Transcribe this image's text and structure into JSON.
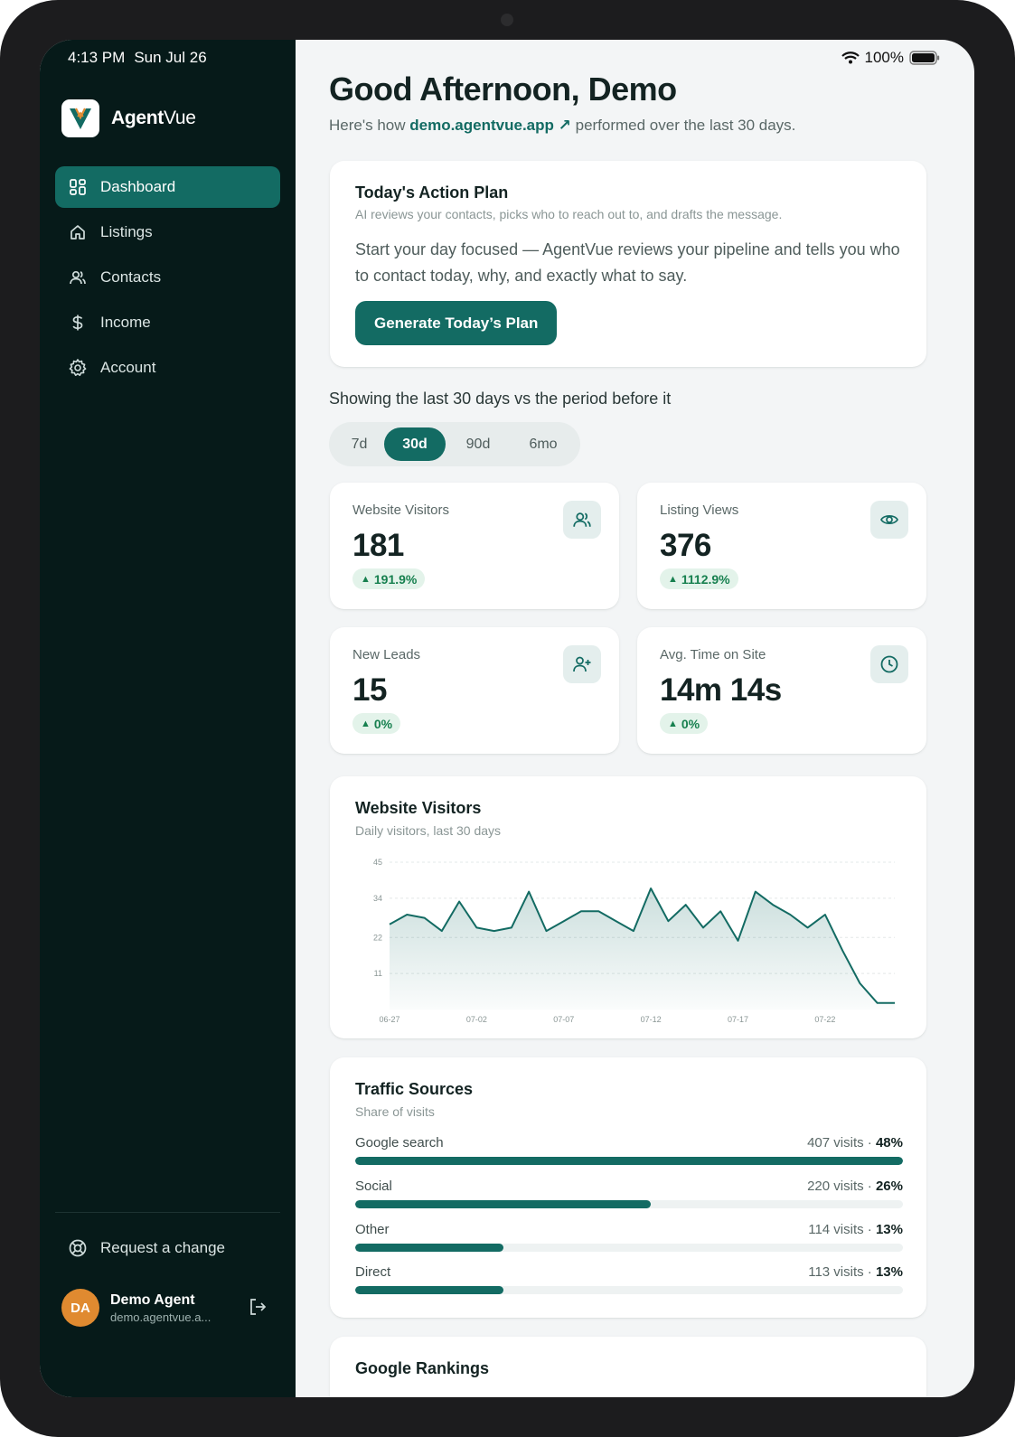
{
  "status": {
    "time": "4:13 PM",
    "date": "Sun Jul 26",
    "battery": "100%"
  },
  "brand": {
    "name_bold": "Agent",
    "name_light": "Vue"
  },
  "sidebar": {
    "items": [
      {
        "label": "Dashboard",
        "icon": "dashboard-icon",
        "active": true
      },
      {
        "label": "Listings",
        "icon": "home-icon"
      },
      {
        "label": "Contacts",
        "icon": "users-icon"
      },
      {
        "label": "Income",
        "icon": "dollar-icon"
      },
      {
        "label": "Account",
        "icon": "gear-icon"
      }
    ],
    "request_label": "Request a change",
    "user": {
      "initials": "DA",
      "name": "Demo Agent",
      "email": "demo.agentvue.a..."
    }
  },
  "header": {
    "greeting": "Good Afternoon, Demo",
    "sub_prefix": "Here's how",
    "site": "demo.agentvue.app",
    "site_arrow": "↗",
    "sub_suffix": "performed over the last 30 days."
  },
  "plan": {
    "title": "Today's Action Plan",
    "subtitle": "AI reviews your contacts, picks who to reach out to, and drafts the message.",
    "body": "Start your day focused — AgentVue reviews your pipeline and tells you who to contact today, why, and exactly what to say.",
    "button": "Generate Today’s Plan"
  },
  "range": {
    "caption": "Showing the last 30 days vs the period before it",
    "tabs": [
      "7d",
      "30d",
      "90d",
      "6mo"
    ],
    "active": "30d"
  },
  "stats": [
    {
      "label": "Website Visitors",
      "value": "181",
      "delta": "191.9%",
      "icon": "users-icon"
    },
    {
      "label": "Listing Views",
      "value": "376",
      "delta": "1112.9%",
      "icon": "eye-icon"
    },
    {
      "label": "New Leads",
      "value": "15",
      "delta": "0%",
      "icon": "user-plus-icon"
    },
    {
      "label": "Avg. Time on Site",
      "value": "14m 14s",
      "delta": "0%",
      "icon": "clock-icon"
    }
  ],
  "visitors_chart": {
    "title": "Website Visitors",
    "subtitle": "Daily visitors, last 30 days"
  },
  "chart_data": {
    "type": "area",
    "title": "Website Visitors",
    "subtitle": "Daily visitors, last 30 days",
    "xlabel": "",
    "ylabel": "",
    "ylim": [
      0,
      45
    ],
    "yticks": [
      11,
      22,
      34,
      45
    ],
    "xtick_labels": [
      "06-27",
      "07-02",
      "07-07",
      "07-12",
      "07-17",
      "07-22"
    ],
    "x": [
      "06-27",
      "06-28",
      "06-29",
      "06-30",
      "07-01",
      "07-02",
      "07-03",
      "07-04",
      "07-05",
      "07-06",
      "07-07",
      "07-08",
      "07-09",
      "07-10",
      "07-11",
      "07-12",
      "07-13",
      "07-14",
      "07-15",
      "07-16",
      "07-17",
      "07-18",
      "07-19",
      "07-20",
      "07-21",
      "07-22",
      "07-23",
      "07-24",
      "07-25",
      "07-26"
    ],
    "values": [
      26,
      29,
      28,
      24,
      33,
      25,
      24,
      25,
      36,
      24,
      27,
      30,
      30,
      27,
      24,
      37,
      27,
      32,
      25,
      30,
      21,
      36,
      32,
      29,
      25,
      29,
      18,
      8,
      2,
      2
    ],
    "grid": true,
    "color": "#136b63"
  },
  "traffic": {
    "title": "Traffic Sources",
    "subtitle": "Share of visits",
    "sources": [
      {
        "label": "Google search",
        "visits": "407 visits ·",
        "pct": "48%",
        "share": 1.0
      },
      {
        "label": "Social",
        "visits": "220 visits ·",
        "pct": "26%",
        "share": 0.54
      },
      {
        "label": "Other",
        "visits": "114 visits ·",
        "pct": "13%",
        "share": 0.27
      },
      {
        "label": "Direct",
        "visits": "113 visits ·",
        "pct": "13%",
        "share": 0.27
      }
    ]
  },
  "rankings": {
    "title": "Google Rankings"
  },
  "colors": {
    "accent": "#136b63",
    "sidebar": "#061a19",
    "positive": "#17804f",
    "avatar": "#e08a30"
  }
}
